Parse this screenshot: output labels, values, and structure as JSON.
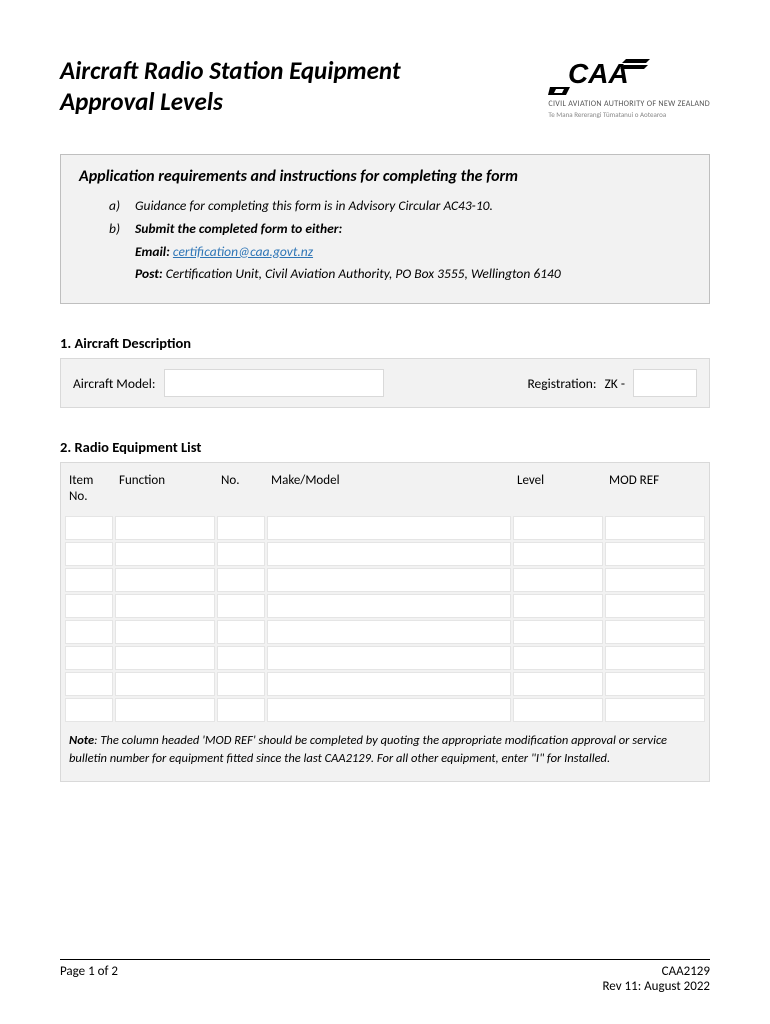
{
  "header": {
    "title": "Aircraft Radio Station Equipment Approval Levels",
    "logo_text": "CAA",
    "logo_sub1": "CIVIL AVIATION AUTHORITY OF NEW ZEALAND",
    "logo_sub2": "Te Mana Rererangi Tūmatanui o Aotearoa"
  },
  "instructions": {
    "title": "Application requirements and instructions for completing the form",
    "item_a_marker": "a)",
    "item_a": "Guidance for completing this form is in Advisory Circular AC43-10.",
    "item_b_marker": "b)",
    "item_b": "Submit the completed form to either:",
    "email_label": "Email:",
    "email_link": "certification@caa.govt.nz",
    "post_label": "Post:",
    "post_text": "Certification Unit, Civil Aviation Authority, PO Box 3555, Wellington 6140"
  },
  "section1": {
    "heading": "1. Aircraft Description",
    "model_label": "Aircraft Model:",
    "reg_label": "Registration:",
    "reg_prefix": "ZK -"
  },
  "section2": {
    "heading": "2. Radio Equipment List",
    "columns": {
      "item": "Item No.",
      "function": "Function",
      "no": "No.",
      "make": "Make/Model",
      "level": "Level",
      "modref": "MOD REF"
    },
    "row_count": 8,
    "note_label": "Note",
    "note_text": ": The column headed 'MOD REF' should be completed by quoting the appropriate modification approval or service bulletin number for equipment fitted since the last CAA2129. For all other equipment, enter \"I\" for Installed."
  },
  "footer": {
    "page": "Page 1 of 2",
    "form_id": "CAA2129",
    "revision": "Rev 11: August 2022"
  },
  "colors": {
    "box_bg": "#f2f2f2",
    "box_border": "#bfbfbf",
    "link": "#2e75b6"
  }
}
